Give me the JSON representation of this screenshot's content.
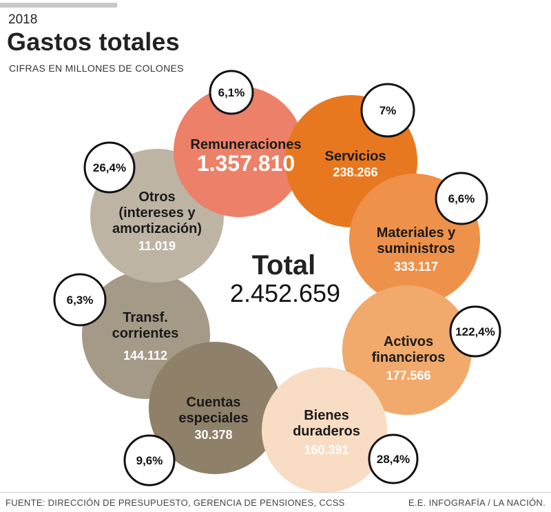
{
  "header": {
    "year": "2018",
    "title": "Gastos totales",
    "subtitle": "CIFRAS EN MILLONES DE COLONES"
  },
  "footer": {
    "source": "FUENTE: DIRECCIÓN DE PRESUPUESTO, GERENCIA DE PENSIONES, CCSS",
    "credit": "E.E. INFOGRAFÍA / LA NACIÓN."
  },
  "chart_data": {
    "type": "bubble",
    "total_label": "Total",
    "total_value": "2.452.659",
    "items": [
      {
        "label": [
          "Remuneraciones"
        ],
        "value": "1.357.810",
        "amount": 1357810,
        "change": "6,1%",
        "color": "#ec8068"
      },
      {
        "label": [
          "Servicios"
        ],
        "value": "238.266",
        "amount": 238266,
        "change": "7%",
        "color": "#e8781f"
      },
      {
        "label": [
          "Materiales y",
          "suministros"
        ],
        "value": "333.117",
        "amount": 333117,
        "change": "6,6%",
        "color": "#ee914a"
      },
      {
        "label": [
          "Activos",
          "financieros"
        ],
        "value": "177.566",
        "amount": 177566,
        "change": "122,4%",
        "color": "#f1a96c"
      },
      {
        "label": [
          "Bienes",
          "duraderos"
        ],
        "value": "160.391",
        "amount": 160391,
        "change": "28,4%",
        "color": "#f8dcc4"
      },
      {
        "label": [
          "Cuentas",
          "especiales"
        ],
        "value": "30.378",
        "amount": 30378,
        "change": "9,6%",
        "color": "#8e8069"
      },
      {
        "label": [
          "Transf.",
          "corrientes"
        ],
        "value": "144.112",
        "amount": 144112,
        "change": "6,3%",
        "color": "#a59a87"
      },
      {
        "label": [
          "Otros",
          "(intereses y",
          "amortización)"
        ],
        "value": "11.019",
        "amount": 11019,
        "change": "26,4%",
        "color": "#bdb4a4"
      }
    ]
  }
}
